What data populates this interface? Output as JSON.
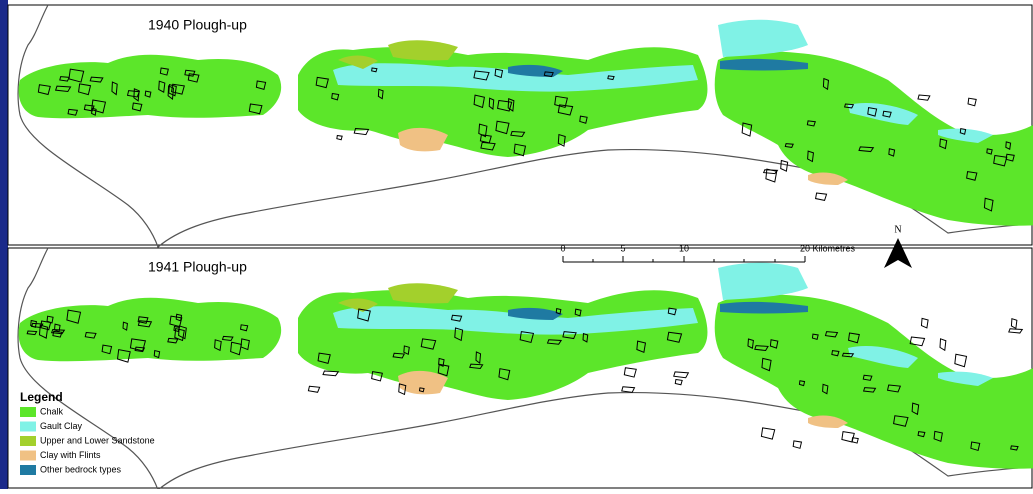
{
  "panels": [
    {
      "title": "1940 Plough-up"
    },
    {
      "title": "1941 Plough-up"
    }
  ],
  "scale_bar": {
    "labels": [
      "0",
      "5",
      "10",
      "20 Kilometres"
    ]
  },
  "north_arrow": "N",
  "legend": {
    "title": "Legend",
    "items": [
      {
        "label": "Chalk",
        "color": "#5ce62a"
      },
      {
        "label": "Gault Clay",
        "color": "#80f2e6"
      },
      {
        "label": "Upper and Lower Sandstone",
        "color": "#a3d02c"
      },
      {
        "label": "Clay with Flints",
        "color": "#f0c184"
      },
      {
        "label": "Other bedrock types",
        "color": "#1f7aa2"
      }
    ]
  }
}
